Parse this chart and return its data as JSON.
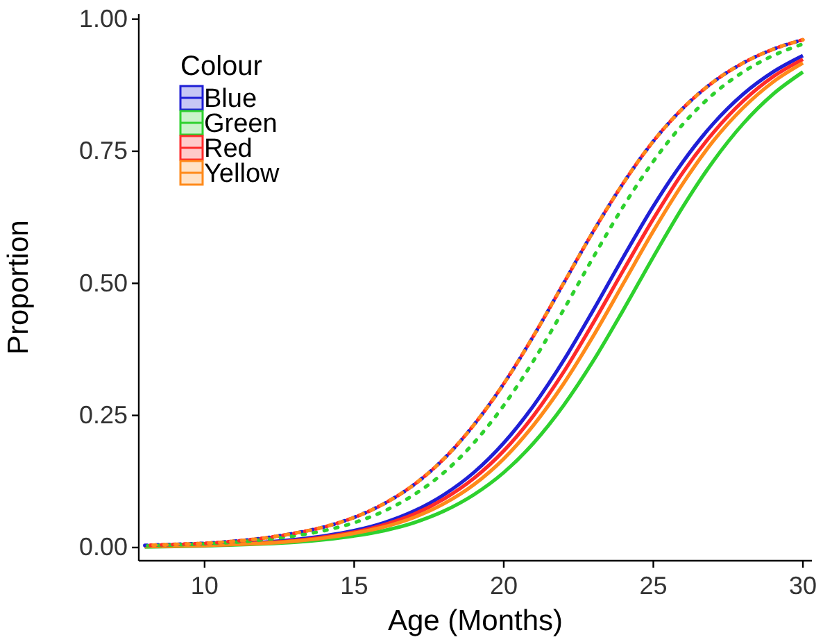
{
  "chart_data": {
    "type": "line",
    "xlabel": "Age (Months)",
    "ylabel": "Proportion",
    "legend_title": "Colour",
    "legend": "top left",
    "grid": false,
    "x": [
      8,
      9,
      10,
      11,
      12,
      13,
      14,
      15,
      16,
      17,
      18,
      19,
      20,
      21,
      22,
      23,
      24,
      25,
      26,
      27,
      28,
      29,
      30
    ],
    "xlim": [
      7.8,
      30.3
    ],
    "xticks": [
      10,
      15,
      20,
      25,
      30
    ],
    "ylim": [
      -0.025,
      1.01
    ],
    "yticks": [
      {
        "value": 0,
        "label": "0.00"
      },
      {
        "value": 0.25,
        "label": "0.25"
      },
      {
        "value": 0.5,
        "label": "0.50"
      },
      {
        "value": 0.75,
        "label": "0.75"
      },
      {
        "value": 1,
        "label": "1.00"
      }
    ],
    "series": [
      {
        "name": "Blue",
        "color": "#1f1fd6",
        "line_style": "solid",
        "values": [
          0.002,
          0.003,
          0.005,
          0.007,
          0.01,
          0.015,
          0.022,
          0.032,
          0.047,
          0.069,
          0.1,
          0.142,
          0.198,
          0.269,
          0.354,
          0.45,
          0.55,
          0.646,
          0.731,
          0.802,
          0.858,
          0.9,
          0.931
        ]
      },
      {
        "name": "Green",
        "color": "#2ed12e",
        "line_style": "solid",
        "values": [
          0.001,
          0.002,
          0.003,
          0.005,
          0.007,
          0.01,
          0.015,
          0.022,
          0.032,
          0.047,
          0.069,
          0.1,
          0.142,
          0.198,
          0.269,
          0.354,
          0.45,
          0.55,
          0.646,
          0.731,
          0.802,
          0.858,
          0.9
        ]
      },
      {
        "name": "Red",
        "color": "#ff2a2a",
        "line_style": "solid",
        "values": [
          0.002,
          0.003,
          0.004,
          0.006,
          0.009,
          0.013,
          0.02,
          0.029,
          0.043,
          0.063,
          0.092,
          0.131,
          0.183,
          0.25,
          0.332,
          0.426,
          0.525,
          0.622,
          0.711,
          0.785,
          0.845,
          0.891,
          0.924
        ]
      },
      {
        "name": "Yellow",
        "color": "#ff8a1a",
        "line_style": "solid",
        "values": [
          0.002,
          0.003,
          0.004,
          0.006,
          0.008,
          0.012,
          0.018,
          0.027,
          0.039,
          0.057,
          0.083,
          0.119,
          0.168,
          0.232,
          0.31,
          0.401,
          0.5,
          0.599,
          0.69,
          0.769,
          0.832,
          0.881,
          0.917
        ]
      },
      {
        "color": "#1f1fd6",
        "line_style": "dotted",
        "values": [
          0.004,
          0.006,
          0.008,
          0.012,
          0.018,
          0.027,
          0.039,
          0.057,
          0.083,
          0.119,
          0.168,
          0.232,
          0.31,
          0.401,
          0.5,
          0.599,
          0.69,
          0.769,
          0.832,
          0.881,
          0.917,
          0.943,
          0.961
        ]
      },
      {
        "color": "#2ed12e",
        "line_style": "dotted",
        "values": [
          0.003,
          0.005,
          0.007,
          0.01,
          0.015,
          0.022,
          0.032,
          0.047,
          0.069,
          0.1,
          0.142,
          0.198,
          0.269,
          0.354,
          0.45,
          0.55,
          0.646,
          0.731,
          0.802,
          0.858,
          0.9,
          0.931,
          0.953
        ]
      },
      {
        "color": "#ff2a2a",
        "line_style": "dotted",
        "values": [
          0.004,
          0.006,
          0.008,
          0.012,
          0.018,
          0.027,
          0.039,
          0.057,
          0.083,
          0.119,
          0.168,
          0.232,
          0.31,
          0.401,
          0.5,
          0.599,
          0.69,
          0.769,
          0.832,
          0.881,
          0.917,
          0.943,
          0.961
        ]
      },
      {
        "color": "#ff8a1a",
        "line_style": "dotted",
        "values": [
          0.004,
          0.006,
          0.008,
          0.012,
          0.018,
          0.027,
          0.039,
          0.057,
          0.083,
          0.119,
          0.168,
          0.232,
          0.31,
          0.401,
          0.5,
          0.599,
          0.69,
          0.769,
          0.832,
          0.881,
          0.917,
          0.943,
          0.961
        ]
      }
    ]
  }
}
